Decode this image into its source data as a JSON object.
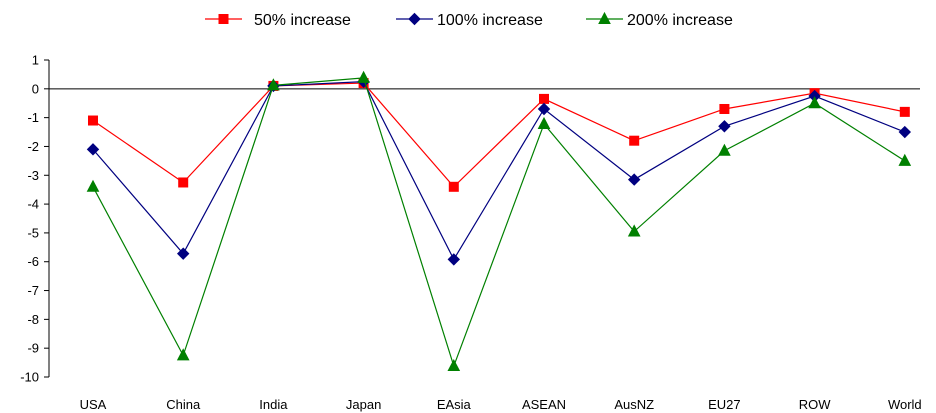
{
  "chart_data": {
    "type": "line",
    "categories": [
      "USA",
      "China",
      "India",
      "Japan",
      "EAsia",
      "ASEAN",
      "AusNZ",
      "EU27",
      "ROW",
      "World"
    ],
    "ylim": [
      -10,
      1
    ],
    "yticks": [
      1,
      0,
      -1,
      -2,
      -3,
      -4,
      -5,
      -6,
      -7,
      -8,
      -9,
      -10
    ],
    "grid": false,
    "legend_position": "top",
    "series": [
      {
        "name": "50% increase",
        "color": "#ff0000",
        "marker": "square",
        "values": [
          -1.1,
          -3.25,
          0.1,
          0.2,
          -3.4,
          -0.35,
          -1.8,
          -0.7,
          -0.15,
          -0.8
        ]
      },
      {
        "name": "100% increase",
        "color": "#000080",
        "marker": "diamond",
        "values": [
          -2.1,
          -5.72,
          0.1,
          0.25,
          -5.92,
          -0.7,
          -3.15,
          -1.3,
          -0.25,
          -1.5
        ]
      },
      {
        "name": "200% increase",
        "color": "#008000",
        "marker": "triangle",
        "values": [
          -3.4,
          -9.25,
          0.12,
          0.38,
          -9.62,
          -1.22,
          -4.95,
          -2.15,
          -0.5,
          -2.5
        ]
      }
    ]
  }
}
